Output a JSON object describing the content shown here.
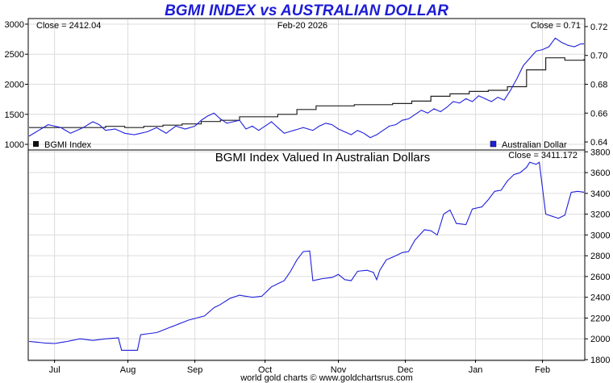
{
  "title": "BGMI INDEX vs AUSTRALIAN DOLLAR",
  "credit": "world gold charts © www.goldchartsrus.com",
  "colors": {
    "title": "#1c1cd6",
    "index": "#222222",
    "aud": "#1f1fdc",
    "grid": "#dcdcdc"
  },
  "chart_data": [
    {
      "type": "line",
      "title": "BGMI INDEX vs AUSTRALIAN DOLLAR",
      "header_left": "Close = 2412.04",
      "header_center": "Feb-20  2026",
      "header_right": "Close = 0.71",
      "legend_left": "BGMI Index",
      "legend_right": "Australian Dollar",
      "x_labels": [
        "Jul",
        "Aug",
        "Sep",
        "Oct",
        "Nov",
        "Dec",
        "Jan",
        "Feb"
      ],
      "x_positions": [
        8,
        31,
        52,
        74,
        97,
        118,
        140,
        161
      ],
      "n_points": 175,
      "left_axis": {
        "ylim": [
          920,
          3080
        ],
        "ticks": [
          1000,
          1500,
          2000,
          2500,
          3000
        ]
      },
      "right_axis": {
        "ylim": [
          0.635,
          0.725
        ],
        "ticks": [
          0.64,
          0.66,
          0.68,
          0.7,
          0.72
        ],
        "labels": [
          "0.64",
          "0.66",
          "0.68",
          "0.70",
          "0.72"
        ]
      },
      "series": [
        {
          "name": "BGMI Index",
          "axis": "left",
          "points": [
            [
              0,
              1270
            ],
            [
              12,
              1275
            ],
            [
              24,
              1290
            ],
            [
              29,
              1275
            ],
            [
              32,
              1280
            ],
            [
              36,
              1300
            ],
            [
              42,
              1320
            ],
            [
              48,
              1340
            ],
            [
              56,
              1380
            ],
            [
              62,
              1420
            ],
            [
              66,
              1450
            ],
            [
              76,
              1480
            ],
            [
              80,
              1500
            ],
            [
              86,
              1630
            ],
            [
              94,
              1630
            ],
            [
              102,
              1660
            ],
            [
              118,
              1680
            ],
            [
              124,
              1800
            ],
            [
              132,
              1830
            ],
            [
              138,
              1880
            ],
            [
              146,
              1900
            ],
            [
              150,
              1950
            ],
            [
              155,
              2100
            ],
            [
              158,
              2500
            ],
            [
              160,
              2520
            ],
            [
              163,
              2400
            ],
            [
              165,
              2380
            ],
            [
              170,
              2412
            ],
            [
              174,
              2412
            ]
          ]
        },
        {
          "name": "Australian Dollar",
          "axis": "right",
          "points": [
            [
              0,
              0.644
            ],
            [
              3,
              0.648
            ],
            [
              6,
              0.652
            ],
            [
              10,
              0.65
            ],
            [
              13,
              0.646
            ],
            [
              17,
              0.65
            ],
            [
              20,
              0.654
            ],
            [
              22,
              0.652
            ],
            [
              24,
              0.648
            ],
            [
              27,
              0.649
            ],
            [
              30,
              0.646
            ],
            [
              33,
              0.645
            ],
            [
              37,
              0.647
            ],
            [
              40,
              0.65
            ],
            [
              43,
              0.646
            ],
            [
              46,
              0.651
            ],
            [
              49,
              0.649
            ],
            [
              52,
              0.651
            ],
            [
              54,
              0.655
            ],
            [
              56,
              0.658
            ],
            [
              58,
              0.66
            ],
            [
              60,
              0.656
            ],
            [
              62,
              0.653
            ],
            [
              64,
              0.654
            ],
            [
              66,
              0.655
            ],
            [
              68,
              0.649
            ],
            [
              70,
              0.651
            ],
            [
              72,
              0.648
            ],
            [
              74,
              0.651
            ],
            [
              76,
              0.654
            ],
            [
              78,
              0.65
            ],
            [
              80,
              0.646
            ],
            [
              83,
              0.648
            ],
            [
              86,
              0.65
            ],
            [
              89,
              0.648
            ],
            [
              91,
              0.651
            ],
            [
              93,
              0.653
            ],
            [
              95,
              0.652
            ],
            [
              97,
              0.649
            ],
            [
              99,
              0.647
            ],
            [
              101,
              0.645
            ],
            [
              103,
              0.648
            ],
            [
              105,
              0.646
            ],
            [
              107,
              0.643
            ],
            [
              109,
              0.645
            ],
            [
              111,
              0.648
            ],
            [
              113,
              0.651
            ],
            [
              115,
              0.652
            ],
            [
              117,
              0.655
            ],
            [
              119,
              0.656
            ],
            [
              121,
              0.659
            ],
            [
              123,
              0.662
            ],
            [
              125,
              0.66
            ],
            [
              127,
              0.663
            ],
            [
              129,
              0.661
            ],
            [
              131,
              0.664
            ],
            [
              133,
              0.668
            ],
            [
              135,
              0.667
            ],
            [
              137,
              0.67
            ],
            [
              139,
              0.668
            ],
            [
              141,
              0.672
            ],
            [
              143,
              0.67
            ],
            [
              145,
              0.668
            ],
            [
              147,
              0.671
            ],
            [
              149,
              0.669
            ],
            [
              151,
              0.676
            ],
            [
              153,
              0.684
            ],
            [
              155,
              0.693
            ],
            [
              157,
              0.698
            ],
            [
              159,
              0.703
            ],
            [
              161,
              0.704
            ],
            [
              163,
              0.706
            ],
            [
              165,
              0.712
            ],
            [
              167,
              0.709
            ],
            [
              169,
              0.707
            ],
            [
              171,
              0.706
            ],
            [
              173,
              0.708
            ]
          ]
        }
      ]
    },
    {
      "type": "line",
      "title": "BGMI Index Valued In Australian Dollars",
      "header_right": "Close = 3411.172",
      "right_axis": {
        "ylim": [
          1800,
          3810
        ],
        "ticks": [
          1800,
          2000,
          2200,
          2400,
          2600,
          2800,
          3000,
          3200,
          3400,
          3600,
          3800
        ]
      },
      "series": [
        {
          "name": "BGMI Index in AUD",
          "points": [
            [
              0,
              1975
            ],
            [
              5,
              1960
            ],
            [
              8,
              1955
            ],
            [
              12,
              1975
            ],
            [
              16,
              2000
            ],
            [
              20,
              1985
            ],
            [
              24,
              2000
            ],
            [
              28,
              2010
            ],
            [
              29,
              1890
            ],
            [
              32,
              1890
            ],
            [
              34,
              1890
            ],
            [
              35,
              2040
            ],
            [
              40,
              2060
            ],
            [
              45,
              2120
            ],
            [
              50,
              2180
            ],
            [
              55,
              2220
            ],
            [
              58,
              2300
            ],
            [
              60,
              2330
            ],
            [
              63,
              2390
            ],
            [
              66,
              2420
            ],
            [
              70,
              2400
            ],
            [
              73,
              2410
            ],
            [
              76,
              2500
            ],
            [
              80,
              2560
            ],
            [
              82,
              2650
            ],
            [
              84,
              2760
            ],
            [
              86,
              2840
            ],
            [
              88,
              2845
            ],
            [
              89,
              2560
            ],
            [
              92,
              2580
            ],
            [
              95,
              2590
            ],
            [
              97,
              2620
            ],
            [
              99,
              2570
            ],
            [
              101,
              2560
            ],
            [
              103,
              2650
            ],
            [
              106,
              2660
            ],
            [
              108,
              2640
            ],
            [
              109,
              2570
            ],
            [
              110,
              2660
            ],
            [
              112,
              2760
            ],
            [
              115,
              2800
            ],
            [
              117,
              2830
            ],
            [
              119,
              2840
            ],
            [
              121,
              2950
            ],
            [
              124,
              3050
            ],
            [
              126,
              3040
            ],
            [
              128,
              3000
            ],
            [
              130,
              3200
            ],
            [
              132,
              3240
            ],
            [
              134,
              3110
            ],
            [
              137,
              3100
            ],
            [
              139,
              3250
            ],
            [
              142,
              3270
            ],
            [
              144,
              3340
            ],
            [
              146,
              3420
            ],
            [
              148,
              3430
            ],
            [
              150,
              3520
            ],
            [
              152,
              3580
            ],
            [
              154,
              3600
            ],
            [
              156,
              3650
            ],
            [
              157,
              3700
            ],
            [
              159,
              3680
            ],
            [
              160,
              3700
            ],
            [
              162,
              3200
            ],
            [
              164,
              3180
            ],
            [
              166,
              3160
            ],
            [
              168,
              3190
            ],
            [
              170,
              3410
            ],
            [
              172,
              3420
            ],
            [
              174,
              3411
            ]
          ]
        }
      ]
    }
  ]
}
